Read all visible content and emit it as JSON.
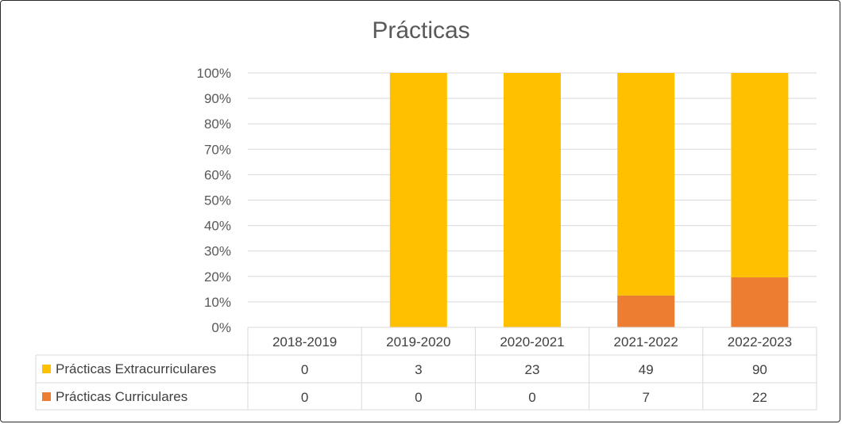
{
  "chart_data": {
    "type": "bar",
    "stacked": "percent",
    "title": "Prácticas",
    "categories": [
      "2018-2019",
      "2019-2020",
      "2020-2021",
      "2021-2022",
      "2022-2023"
    ],
    "series": [
      {
        "name": "Prácticas Extracurriculares",
        "values": [
          0,
          3,
          23,
          49,
          90
        ],
        "color": "#FFC000"
      },
      {
        "name": "Prácticas Curriculares",
        "values": [
          0,
          0,
          0,
          7,
          22
        ],
        "color": "#ED7D31"
      }
    ],
    "yticks": [
      "0%",
      "10%",
      "20%",
      "30%",
      "40%",
      "50%",
      "60%",
      "70%",
      "80%",
      "90%",
      "100%"
    ],
    "ylim": [
      0,
      100
    ],
    "grid": true,
    "legend": "data-table"
  }
}
